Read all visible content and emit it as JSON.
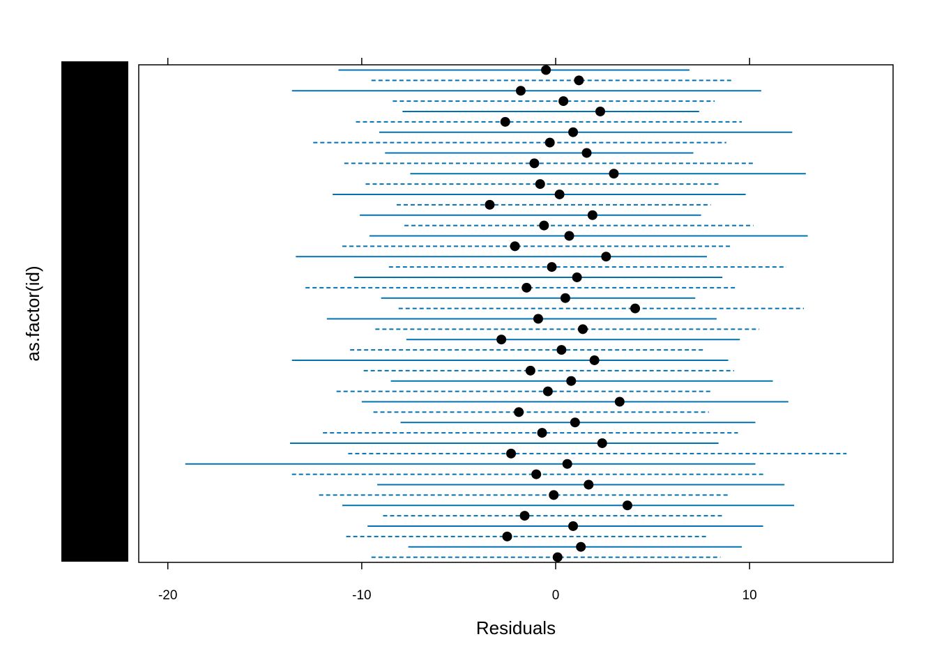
{
  "chart_data": {
    "type": "dotrange",
    "x_label": "Residuals",
    "y_label": "as.factor(id)",
    "color": "#0072b2",
    "point_color": "#000000",
    "xlim": [
      -21.5,
      17.4
    ],
    "xticks": [
      -20,
      -10,
      0,
      10
    ],
    "values": [
      -0.5,
      1.2,
      -1.8,
      0.4,
      2.3,
      -2.6,
      0.9,
      -0.3,
      1.6,
      -1.1,
      3.0,
      -0.8,
      0.2,
      -3.4,
      1.9,
      -0.6,
      0.7,
      -2.1,
      2.6,
      -0.2,
      1.1,
      -1.5,
      0.5,
      4.1,
      -0.9,
      1.4,
      -2.8,
      0.3,
      2.0,
      -1.3,
      0.8,
      -0.4,
      3.3,
      -1.9,
      1.0,
      -0.7,
      2.4,
      -2.3,
      0.6,
      -1.0,
      1.7,
      -0.1,
      3.7,
      -1.6,
      0.9,
      -2.5,
      1.3,
      0.1
    ],
    "low": [
      -11.2,
      -9.5,
      -13.6,
      -8.4,
      -7.9,
      -10.3,
      -9.1,
      -12.5,
      -8.8,
      -10.9,
      -7.5,
      -9.8,
      -11.5,
      -8.2,
      -10.1,
      -7.8,
      -9.6,
      -11.0,
      -13.4,
      -8.6,
      -10.4,
      -12.9,
      -9.0,
      -8.1,
      -11.8,
      -9.3,
      -7.7,
      -10.6,
      -13.6,
      -9.9,
      -8.5,
      -11.3,
      -10.0,
      -9.4,
      -8.0,
      -12.0,
      -13.7,
      -10.7,
      -19.1,
      -13.6,
      -9.2,
      -12.2,
      -11.0,
      -8.9,
      -9.7,
      -10.8,
      -7.6,
      -9.5
    ],
    "high": [
      6.9,
      9.1,
      10.6,
      8.2,
      7.4,
      9.6,
      12.2,
      8.8,
      7.1,
      10.2,
      12.9,
      8.5,
      9.8,
      8.0,
      7.5,
      10.2,
      13.0,
      9.1,
      7.8,
      11.9,
      8.6,
      9.3,
      7.2,
      12.8,
      8.3,
      10.5,
      9.5,
      7.6,
      8.9,
      9.2,
      11.2,
      8.0,
      12.0,
      7.9,
      10.3,
      9.4,
      8.4,
      15.0,
      10.3,
      10.7,
      11.8,
      9.0,
      12.3,
      8.7,
      10.7,
      7.8,
      9.6,
      8.5
    ]
  }
}
